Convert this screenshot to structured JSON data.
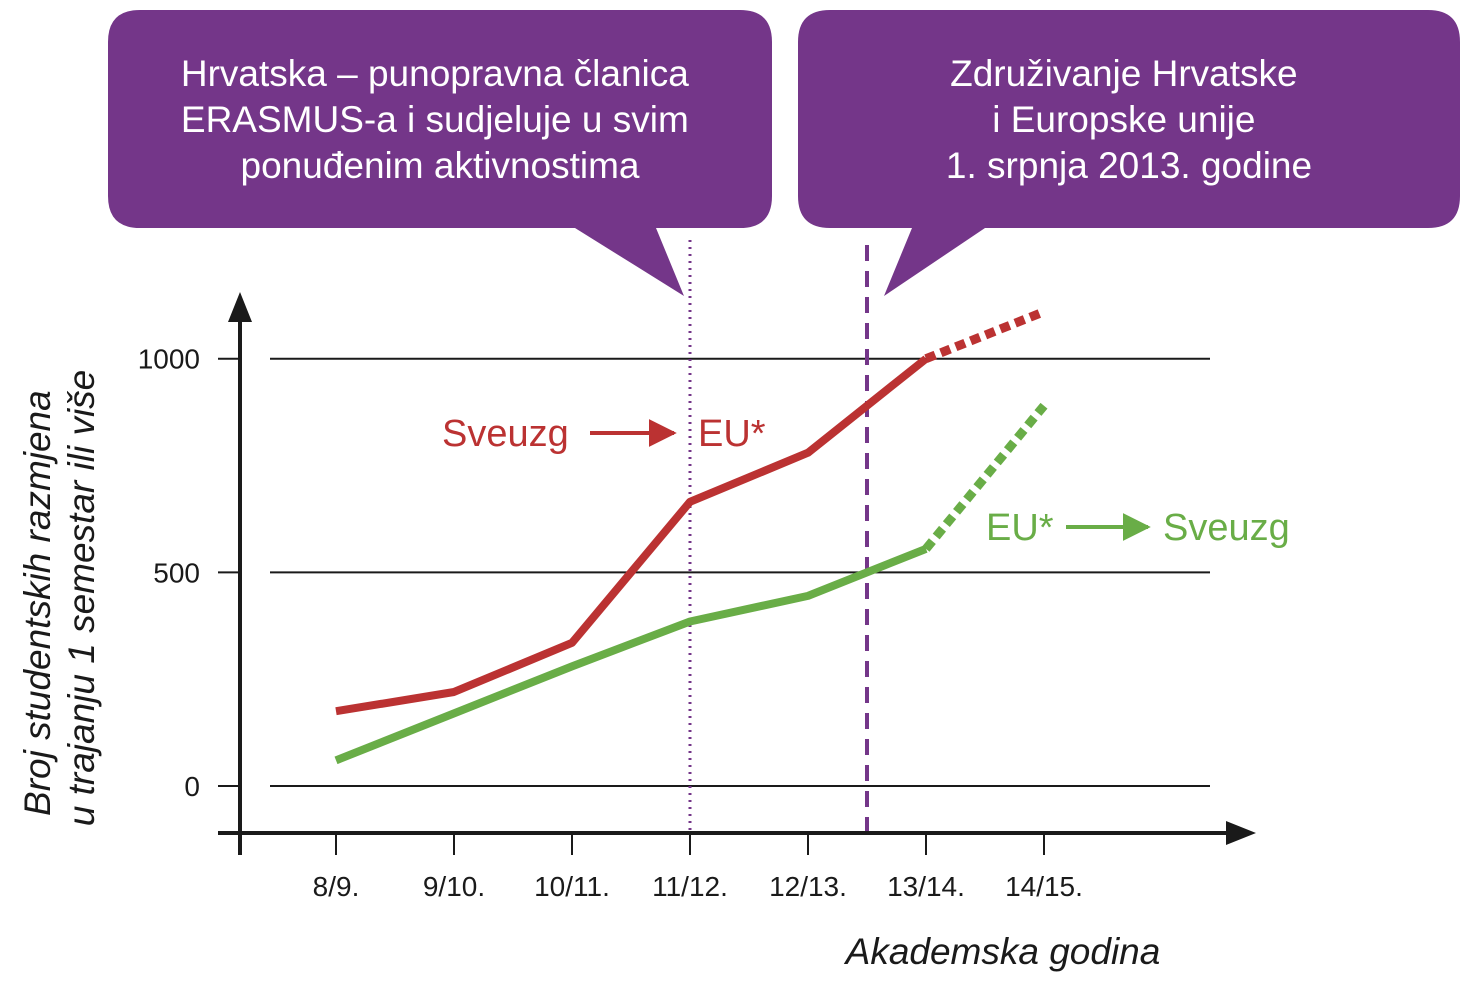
{
  "callouts": {
    "left": {
      "lines": [
        "Hrvatska – punopravna članica",
        "ERASMUS-a i sudjeluje u svim",
        "ponuđenim aktivnostima"
      ]
    },
    "right": {
      "lines": [
        "Združivanje Hrvatske",
        "i Europske unije",
        "1. srpnja 2013. godine"
      ]
    }
  },
  "colors": {
    "callout_fill": "#743689",
    "outgoing": "#bb3232",
    "incoming": "#69ad47",
    "marker_line": "#743689",
    "axis": "#1a1a1a"
  },
  "annotations": {
    "outgoing": {
      "from": "Sveuzg",
      "to": "EU*"
    },
    "incoming": {
      "from": "EU*",
      "to": "Sveuzg"
    }
  },
  "chart_data": {
    "type": "line",
    "title": "",
    "xlabel": "Akademska godina",
    "ylabel_lines": [
      "Broj studentskih razmjena",
      "u trajanju 1 semestar ili više"
    ],
    "categories": [
      "8/9.",
      "9/10.",
      "10/11.",
      "11/12.",
      "12/13.",
      "13/14.",
      "14/15."
    ],
    "yticks": [
      0,
      500,
      1000
    ],
    "ylim": [
      -110,
      1140
    ],
    "grid": "horizontal",
    "series": [
      {
        "name": "Sveuzg → EU*",
        "color": "#bb3232",
        "values": [
          175,
          220,
          335,
          665,
          780,
          1000,
          1110
        ],
        "projected_from_index": 5
      },
      {
        "name": "EU* → Sveuzg",
        "color": "#69ad47",
        "values": [
          60,
          170,
          280,
          385,
          445,
          555,
          890
        ],
        "projected_from_index": 5
      }
    ],
    "markers": [
      {
        "x": 3,
        "style": "dotted",
        "meaning": "Hrvatska – punopravna članica ERASMUS-a"
      },
      {
        "x": 4.5,
        "style": "dashed",
        "meaning": "Združivanje Hrvatske i Europske unije"
      }
    ]
  }
}
